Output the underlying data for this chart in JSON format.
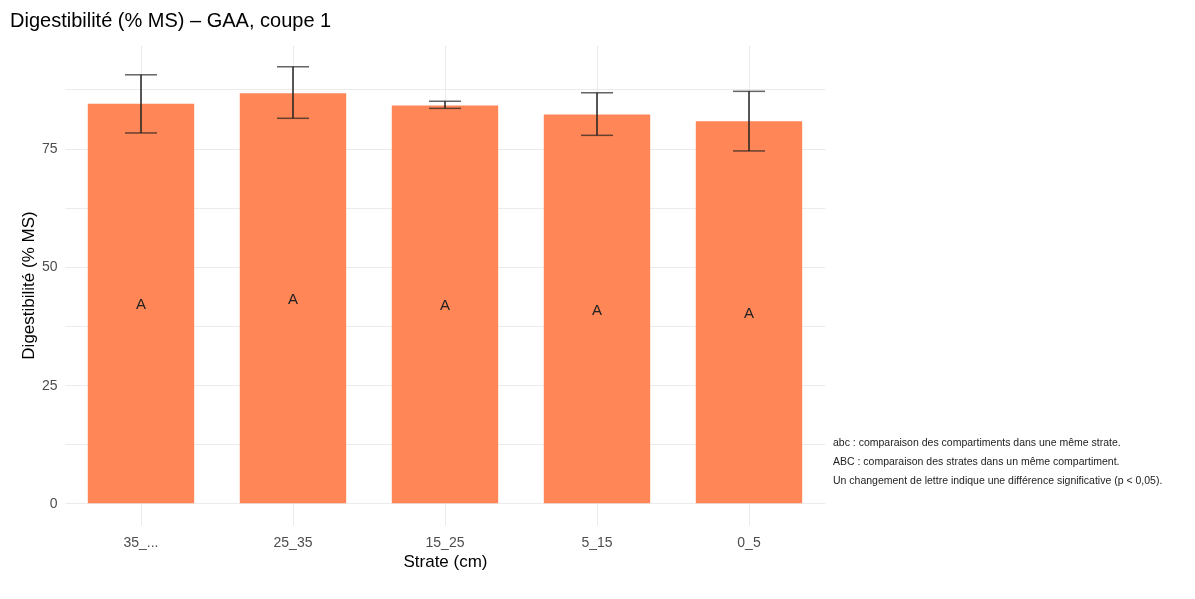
{
  "chart_data": {
    "type": "bar",
    "title": "Digestibilité (% MS) – GAA, coupe 1",
    "xlabel": "Strate (cm)",
    "ylabel": "Digestibilité (% MS)",
    "categories": [
      "35_...",
      "25_35",
      "15_25",
      "5_15",
      "0_5"
    ],
    "values": [
      84.5,
      86.7,
      84.1,
      82.2,
      80.8
    ],
    "color": "#ff8656",
    "errors": [
      [
        78.3,
        90.6
      ],
      [
        81.4,
        92.3
      ],
      [
        83.5,
        85.0
      ],
      [
        77.8,
        86.8
      ],
      [
        74.5,
        87.1
      ]
    ],
    "ylim": [
      -4.6,
      96.9
    ],
    "yticks": [
      0,
      {
        "value": 12.5,
        "label": null
      },
      25,
      {
        "value": 37.5,
        "label": null
      },
      50,
      {
        "value": 62.5,
        "label": null
      },
      75,
      {
        "value": 87.5,
        "label": null
      }
    ],
    "grid": true,
    "annotations": [
      "A",
      "A",
      "A",
      "A",
      "A",
      "abc : comparaison des compartiments dans une même strate.",
      "ABC : comparaison des strates dans un même compartiment.",
      "Un changement de lettre indique une différence significative (p < 0,05)."
    ]
  }
}
